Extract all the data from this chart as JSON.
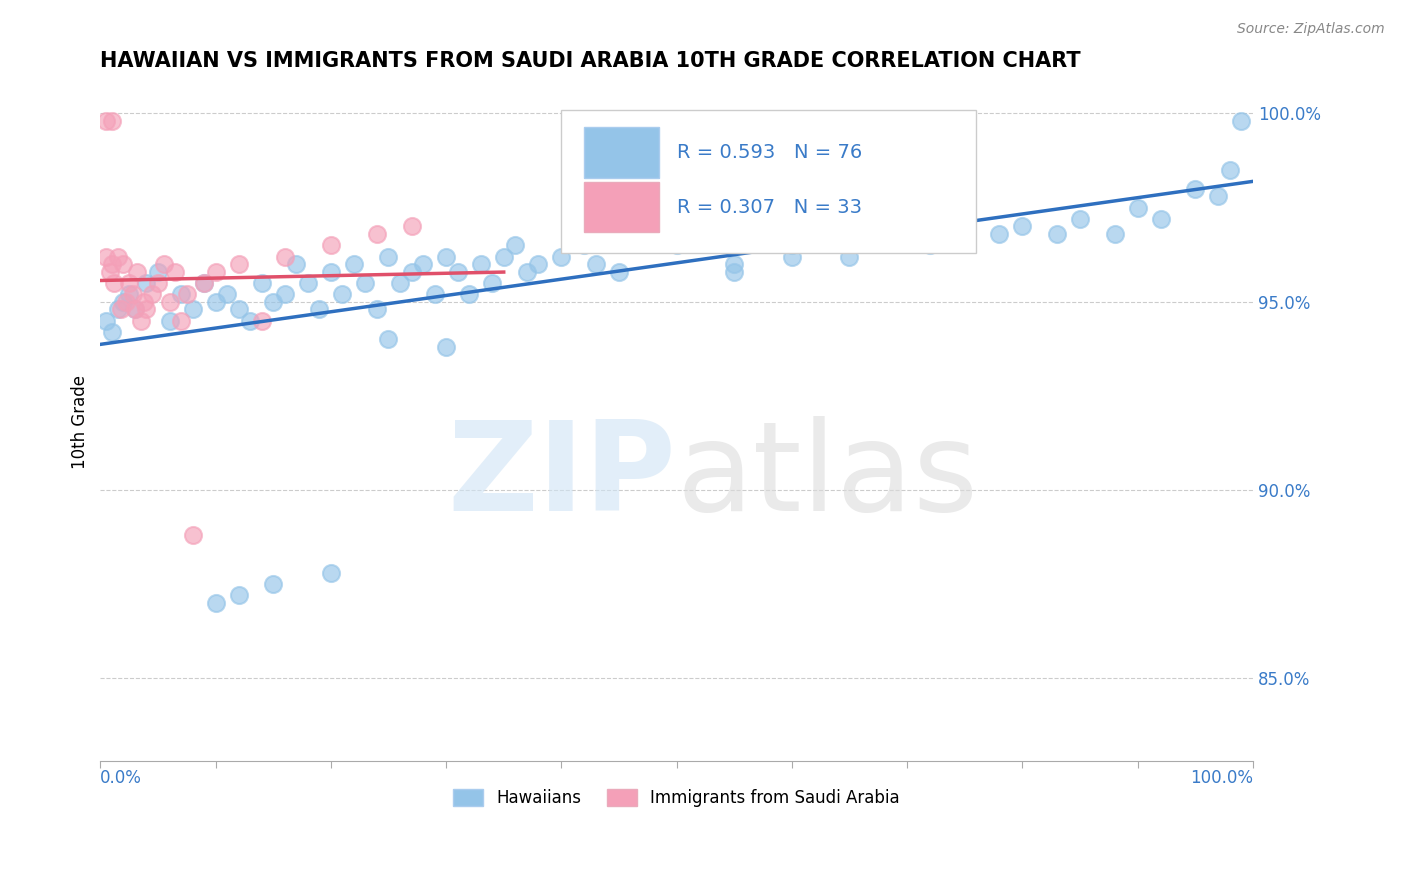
{
  "title": "HAWAIIAN VS IMMIGRANTS FROM SAUDI ARABIA 10TH GRADE CORRELATION CHART",
  "source": "Source: ZipAtlas.com",
  "ylabel": "10th Grade",
  "ylabel_right_labels": [
    "100.0%",
    "95.0%",
    "90.0%",
    "85.0%"
  ],
  "ylabel_right_values": [
    1.0,
    0.95,
    0.9,
    0.85
  ],
  "xmin": 0.0,
  "xmax": 1.0,
  "ymin": 0.828,
  "ymax": 1.008,
  "legend_R1": "R = 0.593",
  "legend_N1": "N = 76",
  "legend_R2": "R = 0.307",
  "legend_N2": "N = 33",
  "blue_color": "#94C4E8",
  "pink_color": "#F4A0B8",
  "trend_blue": "#2E6FBF",
  "trend_pink": "#E0506A",
  "blue_x": [
    0.005,
    0.01,
    0.015,
    0.02,
    0.025,
    0.03,
    0.04,
    0.05,
    0.06,
    0.07,
    0.08,
    0.09,
    0.1,
    0.11,
    0.12,
    0.13,
    0.14,
    0.15,
    0.16,
    0.17,
    0.18,
    0.19,
    0.2,
    0.21,
    0.22,
    0.23,
    0.24,
    0.25,
    0.26,
    0.27,
    0.28,
    0.29,
    0.3,
    0.31,
    0.32,
    0.33,
    0.34,
    0.35,
    0.36,
    0.37,
    0.38,
    0.4,
    0.42,
    0.43,
    0.45,
    0.47,
    0.5,
    0.52,
    0.55,
    0.58,
    0.6,
    0.62,
    0.65,
    0.68,
    0.7,
    0.72,
    0.75,
    0.78,
    0.8,
    0.83,
    0.85,
    0.88,
    0.9,
    0.92,
    0.95,
    0.97,
    0.98,
    0.99,
    0.1,
    0.12,
    0.15,
    0.2,
    0.25,
    0.3,
    0.55,
    0.6
  ],
  "blue_y": [
    0.945,
    0.942,
    0.948,
    0.95,
    0.952,
    0.948,
    0.955,
    0.958,
    0.945,
    0.952,
    0.948,
    0.955,
    0.95,
    0.952,
    0.948,
    0.945,
    0.955,
    0.95,
    0.952,
    0.96,
    0.955,
    0.948,
    0.958,
    0.952,
    0.96,
    0.955,
    0.948,
    0.962,
    0.955,
    0.958,
    0.96,
    0.952,
    0.962,
    0.958,
    0.952,
    0.96,
    0.955,
    0.962,
    0.965,
    0.958,
    0.96,
    0.962,
    0.965,
    0.96,
    0.958,
    0.968,
    0.965,
    0.968,
    0.96,
    0.97,
    0.965,
    0.968,
    0.962,
    0.968,
    0.97,
    0.965,
    0.972,
    0.968,
    0.97,
    0.968,
    0.972,
    0.968,
    0.975,
    0.972,
    0.98,
    0.978,
    0.985,
    0.998,
    0.87,
    0.872,
    0.875,
    0.878,
    0.94,
    0.938,
    0.958,
    0.962
  ],
  "pink_x": [
    0.005,
    0.008,
    0.01,
    0.012,
    0.015,
    0.018,
    0.02,
    0.022,
    0.025,
    0.028,
    0.03,
    0.032,
    0.035,
    0.038,
    0.04,
    0.045,
    0.05,
    0.055,
    0.06,
    0.065,
    0.07,
    0.075,
    0.08,
    0.09,
    0.1,
    0.12,
    0.14,
    0.16,
    0.2,
    0.24,
    0.27,
    0.005,
    0.01
  ],
  "pink_y": [
    0.962,
    0.958,
    0.96,
    0.955,
    0.962,
    0.948,
    0.96,
    0.95,
    0.955,
    0.952,
    0.948,
    0.958,
    0.945,
    0.95,
    0.948,
    0.952,
    0.955,
    0.96,
    0.95,
    0.958,
    0.945,
    0.952,
    0.888,
    0.955,
    0.958,
    0.96,
    0.945,
    0.962,
    0.965,
    0.968,
    0.97,
    0.998,
    0.998
  ]
}
